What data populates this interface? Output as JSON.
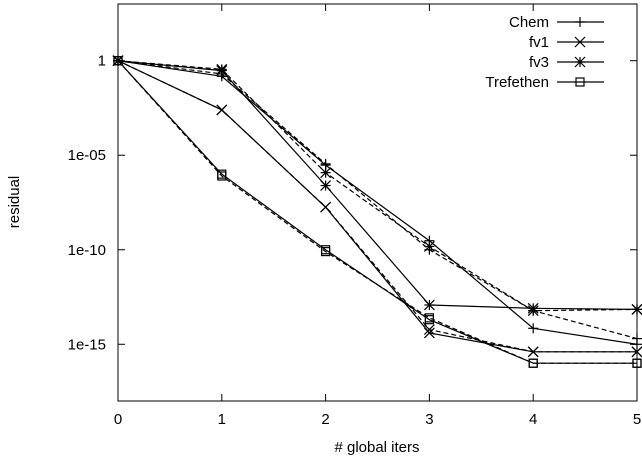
{
  "chart_data": {
    "type": "line",
    "xlabel": "# global iters",
    "ylabel": "residual",
    "x_scale": "linear",
    "y_scale": "log",
    "xlim": [
      0,
      5
    ],
    "ylim": [
      1e-18,
      1000.0
    ],
    "x_ticks": [
      0,
      1,
      2,
      3,
      4,
      5
    ],
    "x_tick_labels": [
      "0",
      "1",
      "2",
      "3",
      "4",
      "5"
    ],
    "y_ticks": [
      1,
      1e-05,
      1e-10,
      1e-15
    ],
    "y_tick_labels": [
      "1",
      "1e-05",
      "1e-10",
      "1e-15"
    ],
    "legend_position": "top-right",
    "x": [
      0,
      1,
      2,
      3,
      4,
      5
    ],
    "series": [
      {
        "name": "Chem",
        "marker": "plus",
        "line": "solid",
        "values": [
          1,
          0.15,
          3e-06,
          3e-10,
          7e-15,
          1e-15
        ]
      },
      {
        "name": "",
        "marker": "plus",
        "line": "dashed",
        "values": [
          1,
          0.2,
          3.5e-06,
          1e-10,
          6e-14,
          2e-15
        ]
      },
      {
        "name": "fv1",
        "marker": "x",
        "line": "solid",
        "values": [
          1,
          0.0025,
          1.8e-08,
          4e-15,
          4e-16,
          4e-16
        ]
      },
      {
        "name": "",
        "marker": "x",
        "line": "dashed",
        "values": [
          1,
          0.0025,
          1.8e-08,
          6e-15,
          4e-16,
          4e-16
        ]
      },
      {
        "name": "fv3",
        "marker": "star",
        "line": "solid",
        "values": [
          1,
          0.3,
          2.5e-07,
          1.2e-13,
          8e-14,
          7e-14
        ]
      },
      {
        "name": "",
        "marker": "star",
        "line": "dashed",
        "values": [
          1,
          0.35,
          1.2e-06,
          1.5e-10,
          6e-14,
          7e-14
        ]
      },
      {
        "name": "Trefethen",
        "marker": "square",
        "line": "solid",
        "values": [
          1,
          1e-06,
          1e-10,
          2e-14,
          1e-16,
          1e-16
        ]
      },
      {
        "name": "",
        "marker": "square",
        "line": "dashed",
        "values": [
          1,
          8e-07,
          8e-11,
          2.5e-14,
          1e-16,
          1e-16
        ]
      }
    ]
  }
}
